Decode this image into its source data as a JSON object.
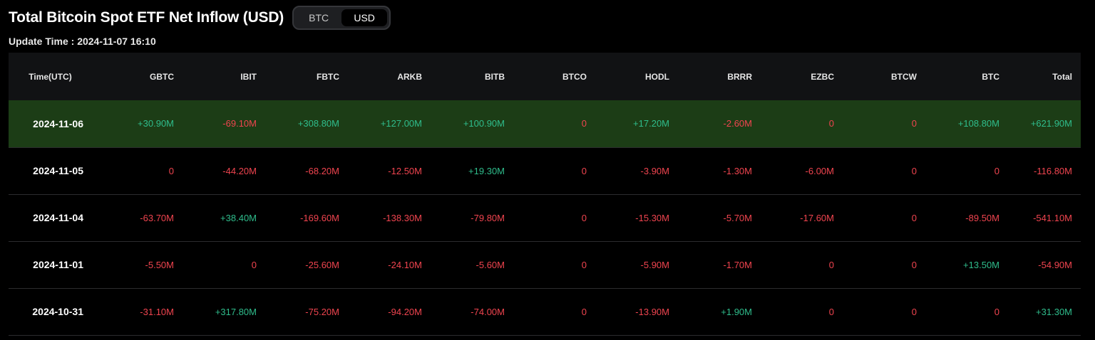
{
  "header": {
    "title": "Total Bitcoin Spot ETF Net Inflow (USD)",
    "toggle": [
      {
        "label": "BTC",
        "active": false
      },
      {
        "label": "USD",
        "active": true
      }
    ],
    "update_time": "Update Time : 2024-11-07 16:10"
  },
  "colors": {
    "positive": "#2fbd8c",
    "negative": "#f0444f",
    "highlight_row": "#1c3d16",
    "header_bg": "#111214"
  },
  "table": {
    "columns": [
      "Time(UTC)",
      "GBTC",
      "IBIT",
      "FBTC",
      "ARKB",
      "BITB",
      "BTCO",
      "HODL",
      "BRRR",
      "EZBC",
      "BTCW",
      "BTC",
      "Total"
    ],
    "rows": [
      {
        "date": "2024-11-06",
        "highlight": true,
        "values": [
          "+30.90M",
          "-69.10M",
          "+308.80M",
          "+127.00M",
          "+100.90M",
          "0",
          "+17.20M",
          "-2.60M",
          "0",
          "0",
          "+108.80M",
          "+621.90M"
        ]
      },
      {
        "date": "2024-11-05",
        "highlight": false,
        "values": [
          "0",
          "-44.20M",
          "-68.20M",
          "-12.50M",
          "+19.30M",
          "0",
          "-3.90M",
          "-1.30M",
          "-6.00M",
          "0",
          "0",
          "-116.80M"
        ]
      },
      {
        "date": "2024-11-04",
        "highlight": false,
        "values": [
          "-63.70M",
          "+38.40M",
          "-169.60M",
          "-138.30M",
          "-79.80M",
          "0",
          "-15.30M",
          "-5.70M",
          "-17.60M",
          "0",
          "-89.50M",
          "-541.10M"
        ]
      },
      {
        "date": "2024-11-01",
        "highlight": false,
        "values": [
          "-5.50M",
          "0",
          "-25.60M",
          "-24.10M",
          "-5.60M",
          "0",
          "-5.90M",
          "-1.70M",
          "0",
          "0",
          "+13.50M",
          "-54.90M"
        ]
      },
      {
        "date": "2024-10-31",
        "highlight": false,
        "values": [
          "-31.10M",
          "+317.80M",
          "-75.20M",
          "-94.20M",
          "-74.00M",
          "0",
          "-13.90M",
          "+1.90M",
          "0",
          "0",
          "0",
          "+31.30M"
        ]
      }
    ]
  }
}
